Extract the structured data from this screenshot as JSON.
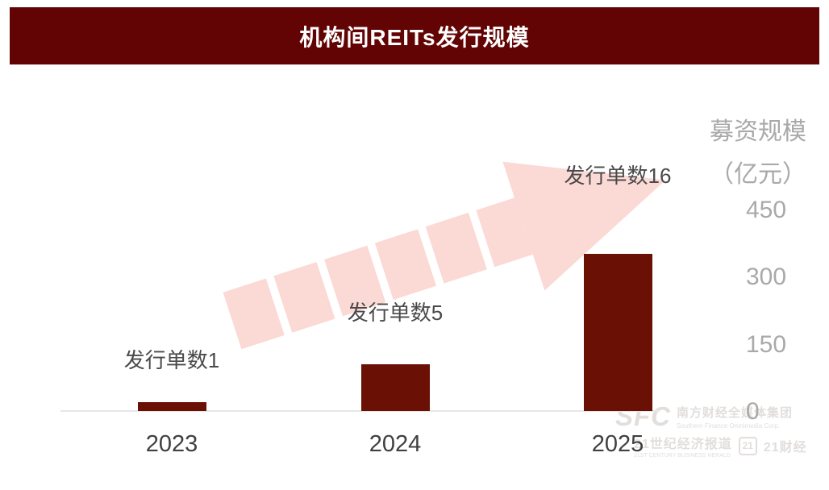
{
  "title": "机构间REITs发行规模",
  "colors": {
    "banner": "#630404",
    "bar": "#6a1005",
    "arrow": "#fbd9d5",
    "axis_line": "#e7e7e7",
    "tick_text": "#a9a9a9",
    "label_text": "#4a4a4a"
  },
  "axis": {
    "title_line1": "募资规模",
    "title_line2": "（亿元）"
  },
  "chart_data": {
    "type": "bar",
    "title": "机构间REITs发行规模",
    "categories": [
      "2023",
      "2024",
      "2025"
    ],
    "values": [
      20,
      105,
      350
    ],
    "annotations": [
      "发行单数1",
      "发行单数5",
      "发行单数16"
    ],
    "ylabel": "募资规模（亿元）",
    "yticks": [
      0,
      150,
      300,
      450
    ],
    "ylim": [
      0,
      450
    ],
    "grid": false,
    "legend": false,
    "bar_color": "#6a1005",
    "trend_arrow": "dashed pink arrow rising left-to-right"
  },
  "watermark": {
    "sfc": "SFC",
    "line1_cn": "南方财经全媒体集团",
    "line1_en": "Southern Finance Omnimedia Corp.",
    "line2_cn": "21世纪经济报道",
    "line2_en": "21ST CENTURY BUSINESS HERALD",
    "badge": "21",
    "line2_right": "21财经"
  }
}
